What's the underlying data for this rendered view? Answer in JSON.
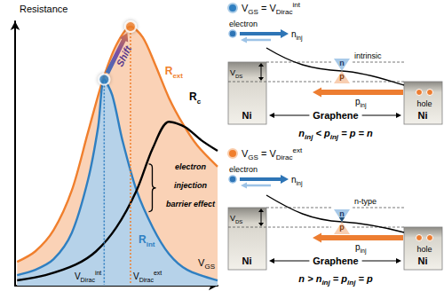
{
  "chart_data": {
    "type": "line",
    "y_label": "Resistance",
    "x_label": {
      "main": "V",
      "sub": "GS"
    },
    "xlim": [
      0,
      100
    ],
    "ylim": [
      0,
      100
    ],
    "tick_labels": false,
    "grid": false,
    "series": [
      {
        "label": {
          "main": "R",
          "sub": "ext"
        },
        "type": "area",
        "color": "#f07f2d",
        "x": [
          1,
          10,
          19,
          28,
          36,
          43,
          50,
          57,
          63,
          69,
          76,
          83,
          90,
          100
        ],
        "values": [
          9,
          13,
          21,
          36,
          58,
          77,
          91,
          98,
          94,
          84,
          71,
          61,
          53,
          45
        ]
      },
      {
        "label": {
          "main": "R",
          "sub": "int"
        },
        "type": "area",
        "color": "#2f7fc1",
        "x": [
          1,
          10,
          19,
          28,
          36,
          41,
          44,
          48,
          53,
          60,
          68,
          76,
          85,
          100
        ],
        "values": [
          4,
          6,
          10,
          20,
          40,
          60,
          78,
          72,
          55,
          36,
          22,
          12,
          6,
          2
        ]
      },
      {
        "label": {
          "main": "R",
          "sub": "c"
        },
        "type": "line",
        "color": "#000000",
        "x": [
          1,
          15,
          30,
          40,
          50,
          60,
          68,
          76,
          84,
          92,
          100
        ],
        "values": [
          2,
          4,
          8,
          13,
          22,
          36,
          52,
          62,
          60,
          55,
          51
        ]
      }
    ],
    "markers": [
      {
        "x": 44,
        "y": 78,
        "color": "#2f7fc1",
        "label": {
          "main": "V",
          "sub": "Dirac",
          "sup": "int"
        }
      },
      {
        "x": 57,
        "y": 98,
        "color": "#f07f2d",
        "label": {
          "main": "V",
          "sub": "Dirac",
          "sup": "ext"
        }
      }
    ],
    "shift_label": "Shift",
    "annotation": "electron injection barrier effect"
  },
  "panels": [
    {
      "color": "#2f7fc1",
      "condition": [
        {
          "main": "V",
          "sub": "GS"
        },
        "=",
        {
          "main": "V",
          "sub": "Dirac",
          "sup": "int"
        }
      ],
      "electron": "electron",
      "hole": "hole",
      "n_inj": {
        "main": "n",
        "sub": "inj"
      },
      "p_inj": {
        "main": "p",
        "sub": "inj"
      },
      "n": "n",
      "p": "p",
      "state": "intrinsic",
      "contact": "Ni",
      "channel": "Graphene",
      "bias": {
        "main": "V",
        "sub": "DS"
      },
      "relation": [
        {
          "main": "n",
          "sub": "inj"
        },
        "<",
        {
          "main": "p",
          "sub": "inj"
        },
        "=",
        "p",
        "=",
        "n"
      ]
    },
    {
      "color": "#f07f2d",
      "condition": [
        {
          "main": "V",
          "sub": "GS"
        },
        "=",
        {
          "main": "V",
          "sub": "Dirac",
          "sup": "ext"
        }
      ],
      "electron": "electron",
      "hole": "hole",
      "n_inj": {
        "main": "n",
        "sub": "inj"
      },
      "p_inj": {
        "main": "p",
        "sub": "inj"
      },
      "n": "n",
      "p": "p",
      "state": "n-type",
      "contact": "Ni",
      "channel": "Graphene",
      "bias": {
        "main": "V",
        "sub": "DS"
      },
      "relation": [
        "n",
        ">",
        {
          "main": "n",
          "sub": "inj"
        },
        "=",
        {
          "main": "p",
          "sub": "inj"
        },
        "=",
        "p"
      ]
    }
  ]
}
